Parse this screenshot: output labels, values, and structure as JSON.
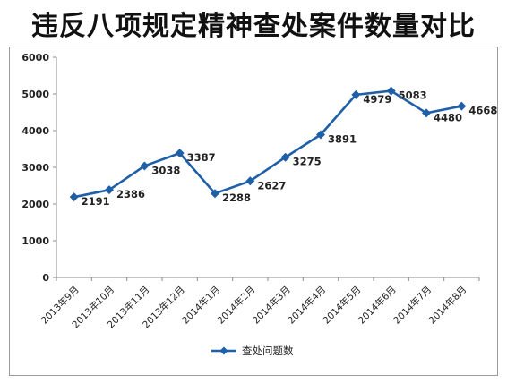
{
  "chart_data": {
    "type": "line",
    "title": "违反八项规定精神查处案件数量对比",
    "categories": [
      "2013年9月",
      "2013年10月",
      "2013年11月",
      "2013年12月",
      "2014年1月",
      "2014年2月",
      "2014年3月",
      "2014年4月",
      "2014年5月",
      "2014年6月",
      "2014年7月",
      "2014年8月"
    ],
    "series": [
      {
        "name": "查处问题数",
        "values": [
          2191,
          2386,
          3038,
          3387,
          2288,
          2627,
          3275,
          3891,
          4979,
          5083,
          4480,
          4668
        ]
      }
    ],
    "y_ticks": [
      "0",
      "1000",
      "2000",
      "3000",
      "4000",
      "5000",
      "6000"
    ],
    "ylim": [
      0,
      6000
    ],
    "grid": false,
    "legend": "bottom",
    "line_color": "#1f5fa8"
  }
}
